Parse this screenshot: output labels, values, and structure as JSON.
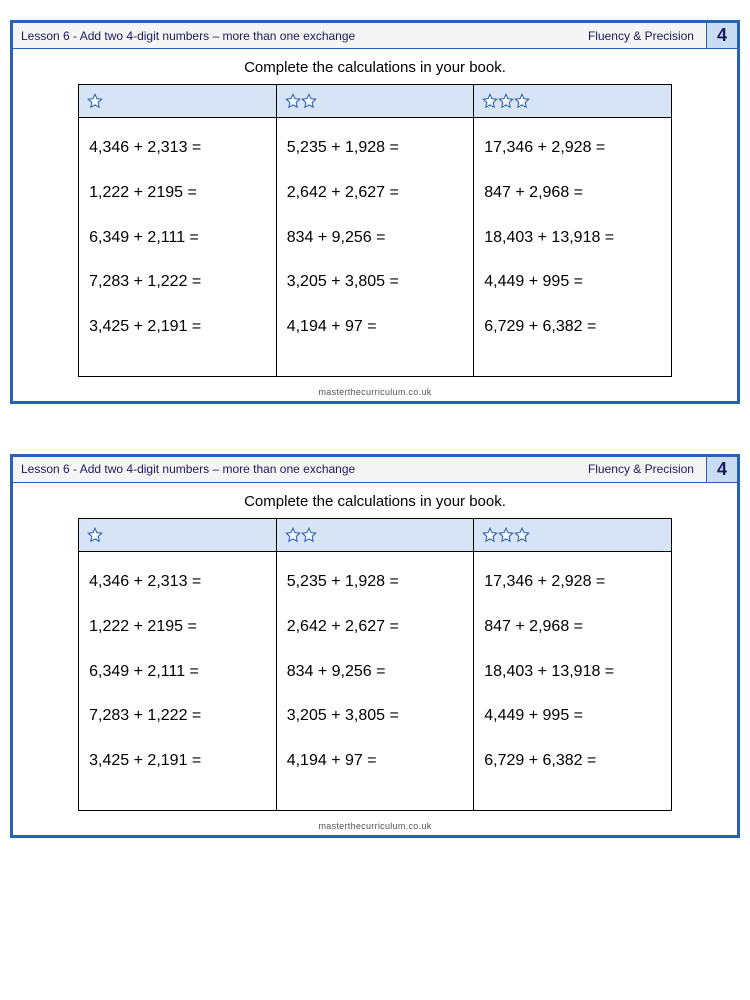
{
  "header": {
    "lesson_title": "Lesson 6 - Add two 4-digit numbers – more than one exchange",
    "category": "Fluency & Precision",
    "page_number": "4"
  },
  "instruction": "Complete the calculations in your book.",
  "footer": "masterthecurriculum.co.uk",
  "colors": {
    "border": "#2762b8",
    "header_cell_bg": "#d6e4f5",
    "page_badge_bg": "#c9dcf2",
    "star_stroke": "#2762b8",
    "star_fill": "#ffffff"
  },
  "table": {
    "columns": [
      {
        "stars": 1
      },
      {
        "stars": 2
      },
      {
        "stars": 3
      }
    ],
    "rows": [
      [
        "4,346 + 2,313 =",
        "5,235 + 1,928 =",
        "17,346 + 2,928 ="
      ],
      [
        "1,222 + 2195 =",
        "2,642 + 2,627 =",
        "847 + 2,968 ="
      ],
      [
        "6,349 + 2,111 =",
        "834 + 9,256 =",
        "18,403 + 13,918 ="
      ],
      [
        "7,283 + 1,222 =",
        "3,205 +  3,805 =",
        "4,449 + 995 ="
      ],
      [
        "3,425 + 2,191 =",
        "4,194 + 97 =",
        "6,729 + 6,382 ="
      ]
    ]
  }
}
